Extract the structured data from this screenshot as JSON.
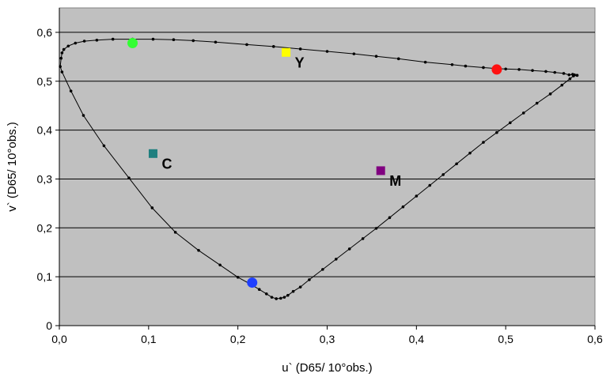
{
  "chart_data": {
    "type": "scatter",
    "xlabel": "u` (D65/ 10°obs.)",
    "ylabel": "v` (D65/ 10°obs.)",
    "xlim": [
      0,
      0.6
    ],
    "ylim": [
      0,
      0.65
    ],
    "x_ticks": [
      "0,0",
      "0,1",
      "0,2",
      "0,3",
      "0,4",
      "0,5",
      "0,6"
    ],
    "y_ticks": [
      "0",
      "0,1",
      "0,2",
      "0,3",
      "0,4",
      "0,5",
      "0,6"
    ],
    "grid": "horizontal",
    "plot_background": "#C0C0C0",
    "spectral_locus": [
      [
        0.58,
        0.512
      ],
      [
        0.577,
        0.513
      ],
      [
        0.575,
        0.514
      ],
      [
        0.571,
        0.513
      ],
      [
        0.565,
        0.516
      ],
      [
        0.555,
        0.518
      ],
      [
        0.545,
        0.52
      ],
      [
        0.53,
        0.522
      ],
      [
        0.515,
        0.524
      ],
      [
        0.5,
        0.525
      ],
      [
        0.49,
        0.526
      ],
      [
        0.475,
        0.528
      ],
      [
        0.455,
        0.531
      ],
      [
        0.44,
        0.534
      ],
      [
        0.41,
        0.539
      ],
      [
        0.38,
        0.546
      ],
      [
        0.355,
        0.551
      ],
      [
        0.33,
        0.556
      ],
      [
        0.3,
        0.561
      ],
      [
        0.27,
        0.566
      ],
      [
        0.24,
        0.571
      ],
      [
        0.21,
        0.575
      ],
      [
        0.175,
        0.58
      ],
      [
        0.15,
        0.583
      ],
      [
        0.128,
        0.585
      ],
      [
        0.105,
        0.586
      ],
      [
        0.082,
        0.586
      ],
      [
        0.06,
        0.586
      ],
      [
        0.042,
        0.584
      ],
      [
        0.028,
        0.582
      ],
      [
        0.018,
        0.578
      ],
      [
        0.01,
        0.572
      ],
      [
        0.005,
        0.565
      ],
      [
        0.003,
        0.558
      ],
      [
        0.002,
        0.547
      ],
      [
        0.001,
        0.53
      ],
      [
        0.003,
        0.519
      ],
      [
        0.013,
        0.48
      ],
      [
        0.027,
        0.43
      ],
      [
        0.05,
        0.368
      ],
      [
        0.078,
        0.302
      ],
      [
        0.104,
        0.241
      ],
      [
        0.13,
        0.191
      ],
      [
        0.156,
        0.154
      ],
      [
        0.18,
        0.124
      ],
      [
        0.2,
        0.099
      ],
      [
        0.214,
        0.085
      ],
      [
        0.224,
        0.074
      ],
      [
        0.232,
        0.065
      ],
      [
        0.238,
        0.058
      ],
      [
        0.243,
        0.055
      ],
      [
        0.248,
        0.056
      ],
      [
        0.252,
        0.058
      ],
      [
        0.256,
        0.062
      ],
      [
        0.262,
        0.07
      ],
      [
        0.27,
        0.079
      ],
      [
        0.28,
        0.094
      ],
      [
        0.295,
        0.115
      ],
      [
        0.31,
        0.136
      ],
      [
        0.325,
        0.157
      ],
      [
        0.34,
        0.178
      ],
      [
        0.355,
        0.199
      ],
      [
        0.37,
        0.221
      ],
      [
        0.385,
        0.243
      ],
      [
        0.4,
        0.265
      ],
      [
        0.415,
        0.287
      ],
      [
        0.43,
        0.309
      ],
      [
        0.445,
        0.331
      ],
      [
        0.46,
        0.353
      ],
      [
        0.475,
        0.375
      ],
      [
        0.49,
        0.395
      ],
      [
        0.505,
        0.415
      ],
      [
        0.52,
        0.435
      ],
      [
        0.535,
        0.455
      ],
      [
        0.55,
        0.474
      ],
      [
        0.563,
        0.492
      ],
      [
        0.572,
        0.505
      ],
      [
        0.576,
        0.511
      ],
      [
        0.58,
        0.512
      ]
    ],
    "primaries": [
      {
        "u": 0.082,
        "v": 0.578,
        "color": "#33FF33"
      },
      {
        "u": 0.49,
        "v": 0.524,
        "color": "#FF1111"
      },
      {
        "u": 0.216,
        "v": 0.088,
        "color": "#1F3FFF"
      }
    ],
    "labeled_points": [
      {
        "label": "Y",
        "u": 0.254,
        "v": 0.559,
        "color": "#FFFF00"
      },
      {
        "label": "C",
        "u": 0.105,
        "v": 0.352,
        "color": "#1F7F7F"
      },
      {
        "label": "M",
        "u": 0.36,
        "v": 0.317,
        "color": "#800080"
      }
    ]
  }
}
